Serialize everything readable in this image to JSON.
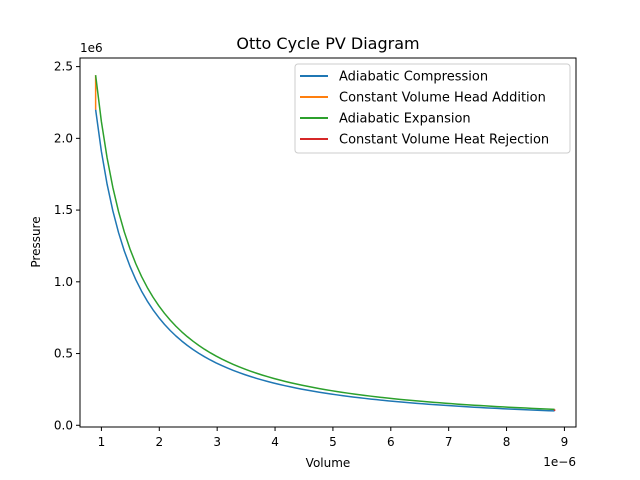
{
  "chart_data": {
    "type": "line",
    "title": "Otto Cycle PV Diagram",
    "xlabel": "Volume",
    "ylabel": "Pressure",
    "x_offset_text": "1e−6",
    "y_offset_text": "1e6",
    "xlim": [
      6.3e-07,
      9.2e-06
    ],
    "ylim": [
      -12000,
      2560000
    ],
    "x_ticks": [
      1e-06,
      2e-06,
      3e-06,
      4e-06,
      5e-06,
      6e-06,
      7e-06,
      8e-06,
      9e-06
    ],
    "x_tick_labels": [
      "1",
      "2",
      "3",
      "4",
      "5",
      "6",
      "7",
      "8",
      "9"
    ],
    "y_ticks": [
      0,
      500000,
      1000000,
      1500000,
      2000000,
      2500000
    ],
    "y_tick_labels": [
      "0.0",
      "0.5",
      "1.0",
      "1.5",
      "2.0",
      "2.5"
    ],
    "grid": false,
    "legend_position": "top-right",
    "series": [
      {
        "name": "Adiabatic Compression",
        "color": "#1f77b4",
        "kind": "adiabatic",
        "v_start": 9e-07,
        "v_end": 8.83e-06,
        "p_at_v_start": 2200000,
        "p_at_v_end": 100000
      },
      {
        "name": "Constant Volume Head Addition",
        "color": "#ff7f0e",
        "kind": "isochoric",
        "v": 9e-07,
        "p_start": 2200000,
        "p_end": 2440000
      },
      {
        "name": "Adiabatic Expansion",
        "color": "#2ca02c",
        "kind": "adiabatic",
        "v_start": 9e-07,
        "v_end": 8.83e-06,
        "p_at_v_start": 2440000,
        "p_at_v_end": 111000
      },
      {
        "name": "Constant Volume Heat Rejection",
        "color": "#d62728",
        "kind": "isochoric",
        "v": 8.83e-06,
        "p_start": 111000,
        "p_end": 100000
      }
    ]
  }
}
